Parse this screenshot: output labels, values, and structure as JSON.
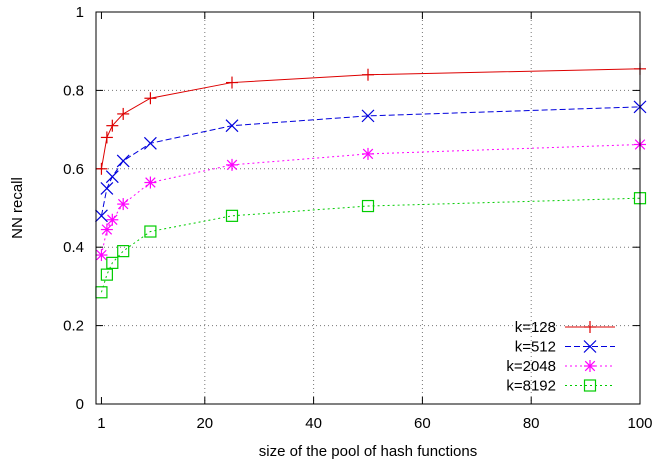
{
  "chart_data": {
    "type": "line",
    "title": "",
    "xlabel": "size of the pool of hash functions",
    "ylabel": "NN recall",
    "xlim": [
      0,
      100
    ],
    "ylim": [
      0,
      1
    ],
    "x_ticks": [
      1,
      20,
      40,
      60,
      80,
      100
    ],
    "y_ticks": [
      0,
      0.2,
      0.4,
      0.6,
      0.8,
      1
    ],
    "y_tick_labels": [
      "0",
      "0.2",
      "0.4",
      "0.6",
      "0.8",
      "1"
    ],
    "grid": true,
    "legend_position": "bottom-right",
    "x": [
      1,
      2,
      3,
      5,
      10,
      25,
      50,
      100
    ],
    "series": [
      {
        "name": "k=128",
        "color": "#dd0000",
        "marker": "plus",
        "dash": "solid",
        "values": [
          0.6,
          0.68,
          0.71,
          0.74,
          0.78,
          0.82,
          0.84,
          0.855
        ]
      },
      {
        "name": "k=512",
        "color": "#0000dd",
        "marker": "cross",
        "dash": "dashed",
        "values": [
          0.48,
          0.55,
          0.58,
          0.62,
          0.665,
          0.71,
          0.735,
          0.758
        ]
      },
      {
        "name": "k=2048",
        "color": "#ff00ff",
        "marker": "star",
        "dash": "dotted",
        "values": [
          0.38,
          0.445,
          0.47,
          0.51,
          0.565,
          0.61,
          0.638,
          0.662
        ]
      },
      {
        "name": "k=8192",
        "color": "#00cc00",
        "marker": "square",
        "dash": "dotted",
        "values": [
          0.285,
          0.33,
          0.36,
          0.39,
          0.44,
          0.48,
          0.505,
          0.525
        ]
      }
    ]
  }
}
